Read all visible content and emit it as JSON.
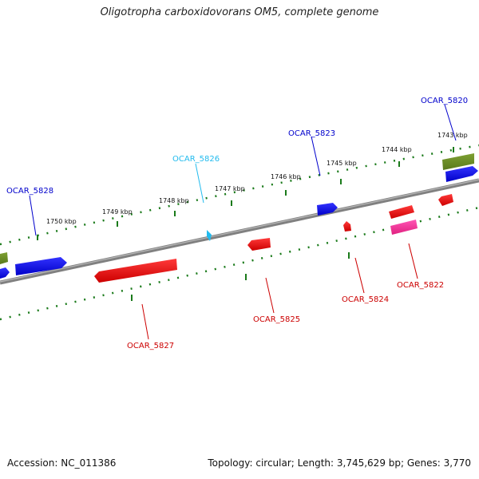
{
  "title": "Oligotropha carboxidovorans OM5, complete genome",
  "footer": {
    "accession": "Accession: NC_011386",
    "summary": "Topology: circular; Length: 3,745,629 bp; Genes: 3,770"
  },
  "colors": {
    "forward_cds": "#0000ee",
    "reverse_cds": "#ee0000",
    "rna": "#ff2aa0",
    "gene_olive": "#6b8c23",
    "highlight": "#22bbee",
    "backbone": "#808080",
    "ticks": "#1a7a1a"
  },
  "kbp_labels": [
    "1750 kbp",
    "1749 kbp",
    "1748 kbp",
    "1747 kbp",
    "1746 kbp",
    "1745 kbp",
    "1744 kbp",
    "1743 kbp"
  ],
  "gene_labels": {
    "ocar_5828": "OCAR_5828",
    "ocar_5826": "OCAR_5826",
    "ocar_5823": "OCAR_5823",
    "ocar_5820": "OCAR_5820",
    "ocar_5827": "OCAR_5827",
    "ocar_5825": "OCAR_5825",
    "ocar_5824": "OCAR_5824",
    "ocar_5822": "OCAR_5822"
  }
}
